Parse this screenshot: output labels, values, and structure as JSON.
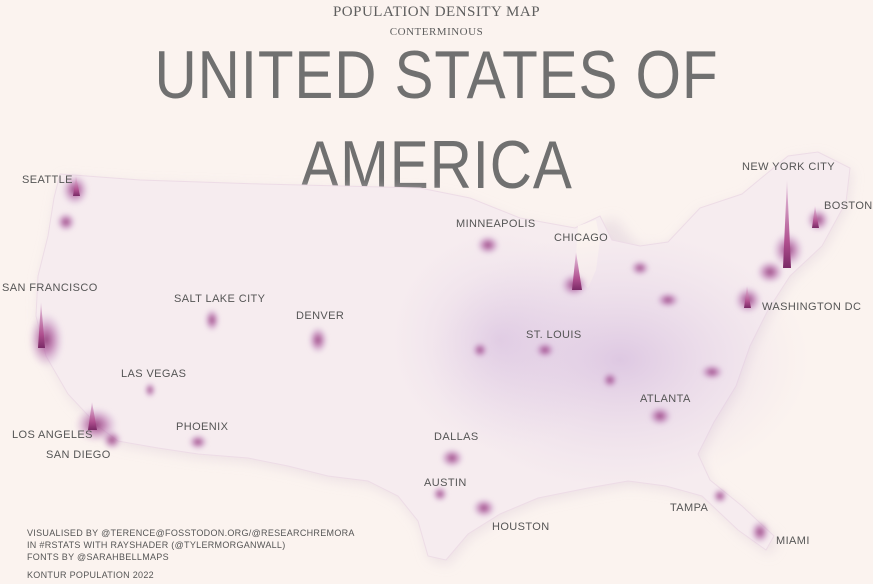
{
  "header": {
    "kicker": "POPULATION DENSITY MAP",
    "subtitle": "CONTERMINOUS",
    "title": "UNITED STATES OF AMERICA"
  },
  "cities": [
    {
      "id": "seattle",
      "label": "SEATTLE"
    },
    {
      "id": "san-francisco",
      "label": "SAN FRANCISCO"
    },
    {
      "id": "salt-lake-city",
      "label": "SALT LAKE CITY"
    },
    {
      "id": "denver",
      "label": "DENVER"
    },
    {
      "id": "las-vegas",
      "label": "LAS VEGAS"
    },
    {
      "id": "los-angeles",
      "label": "LOS ANGELES"
    },
    {
      "id": "san-diego",
      "label": "SAN DIEGO"
    },
    {
      "id": "phoenix",
      "label": "PHOENIX"
    },
    {
      "id": "minneapolis",
      "label": "MINNEAPOLIS"
    },
    {
      "id": "chicago",
      "label": "CHICAGO"
    },
    {
      "id": "st-louis",
      "label": "ST. LOUIS"
    },
    {
      "id": "dallas",
      "label": "DALLAS"
    },
    {
      "id": "austin",
      "label": "AUSTIN"
    },
    {
      "id": "houston",
      "label": "HOUSTON"
    },
    {
      "id": "atlanta",
      "label": "ATLANTA"
    },
    {
      "id": "tampa",
      "label": "TAMPA"
    },
    {
      "id": "miami",
      "label": "MIAMI"
    },
    {
      "id": "washington-dc",
      "label": "WASHINGTON DC"
    },
    {
      "id": "new-york-city",
      "label": "NEW YORK CITY"
    },
    {
      "id": "boston",
      "label": "BOSTON"
    }
  ],
  "credits": {
    "line1": "VISUALISED BY @TERENCE@FOSSTODON.ORG/@RESEARCHREMORA",
    "line2": "IN #RSTATS WITH RAYSHADER (@TYLERMORGANWALL)",
    "line3": "FONTS BY @SARAHBELLMAPS"
  },
  "source": "KONTUR POPULATION 2022",
  "colors": {
    "background": "#fbf3ef",
    "land": "#f6ecef",
    "density_low": "#d8c2dd",
    "density_high": "#8a2f6f",
    "shadow": "#7560b0"
  }
}
